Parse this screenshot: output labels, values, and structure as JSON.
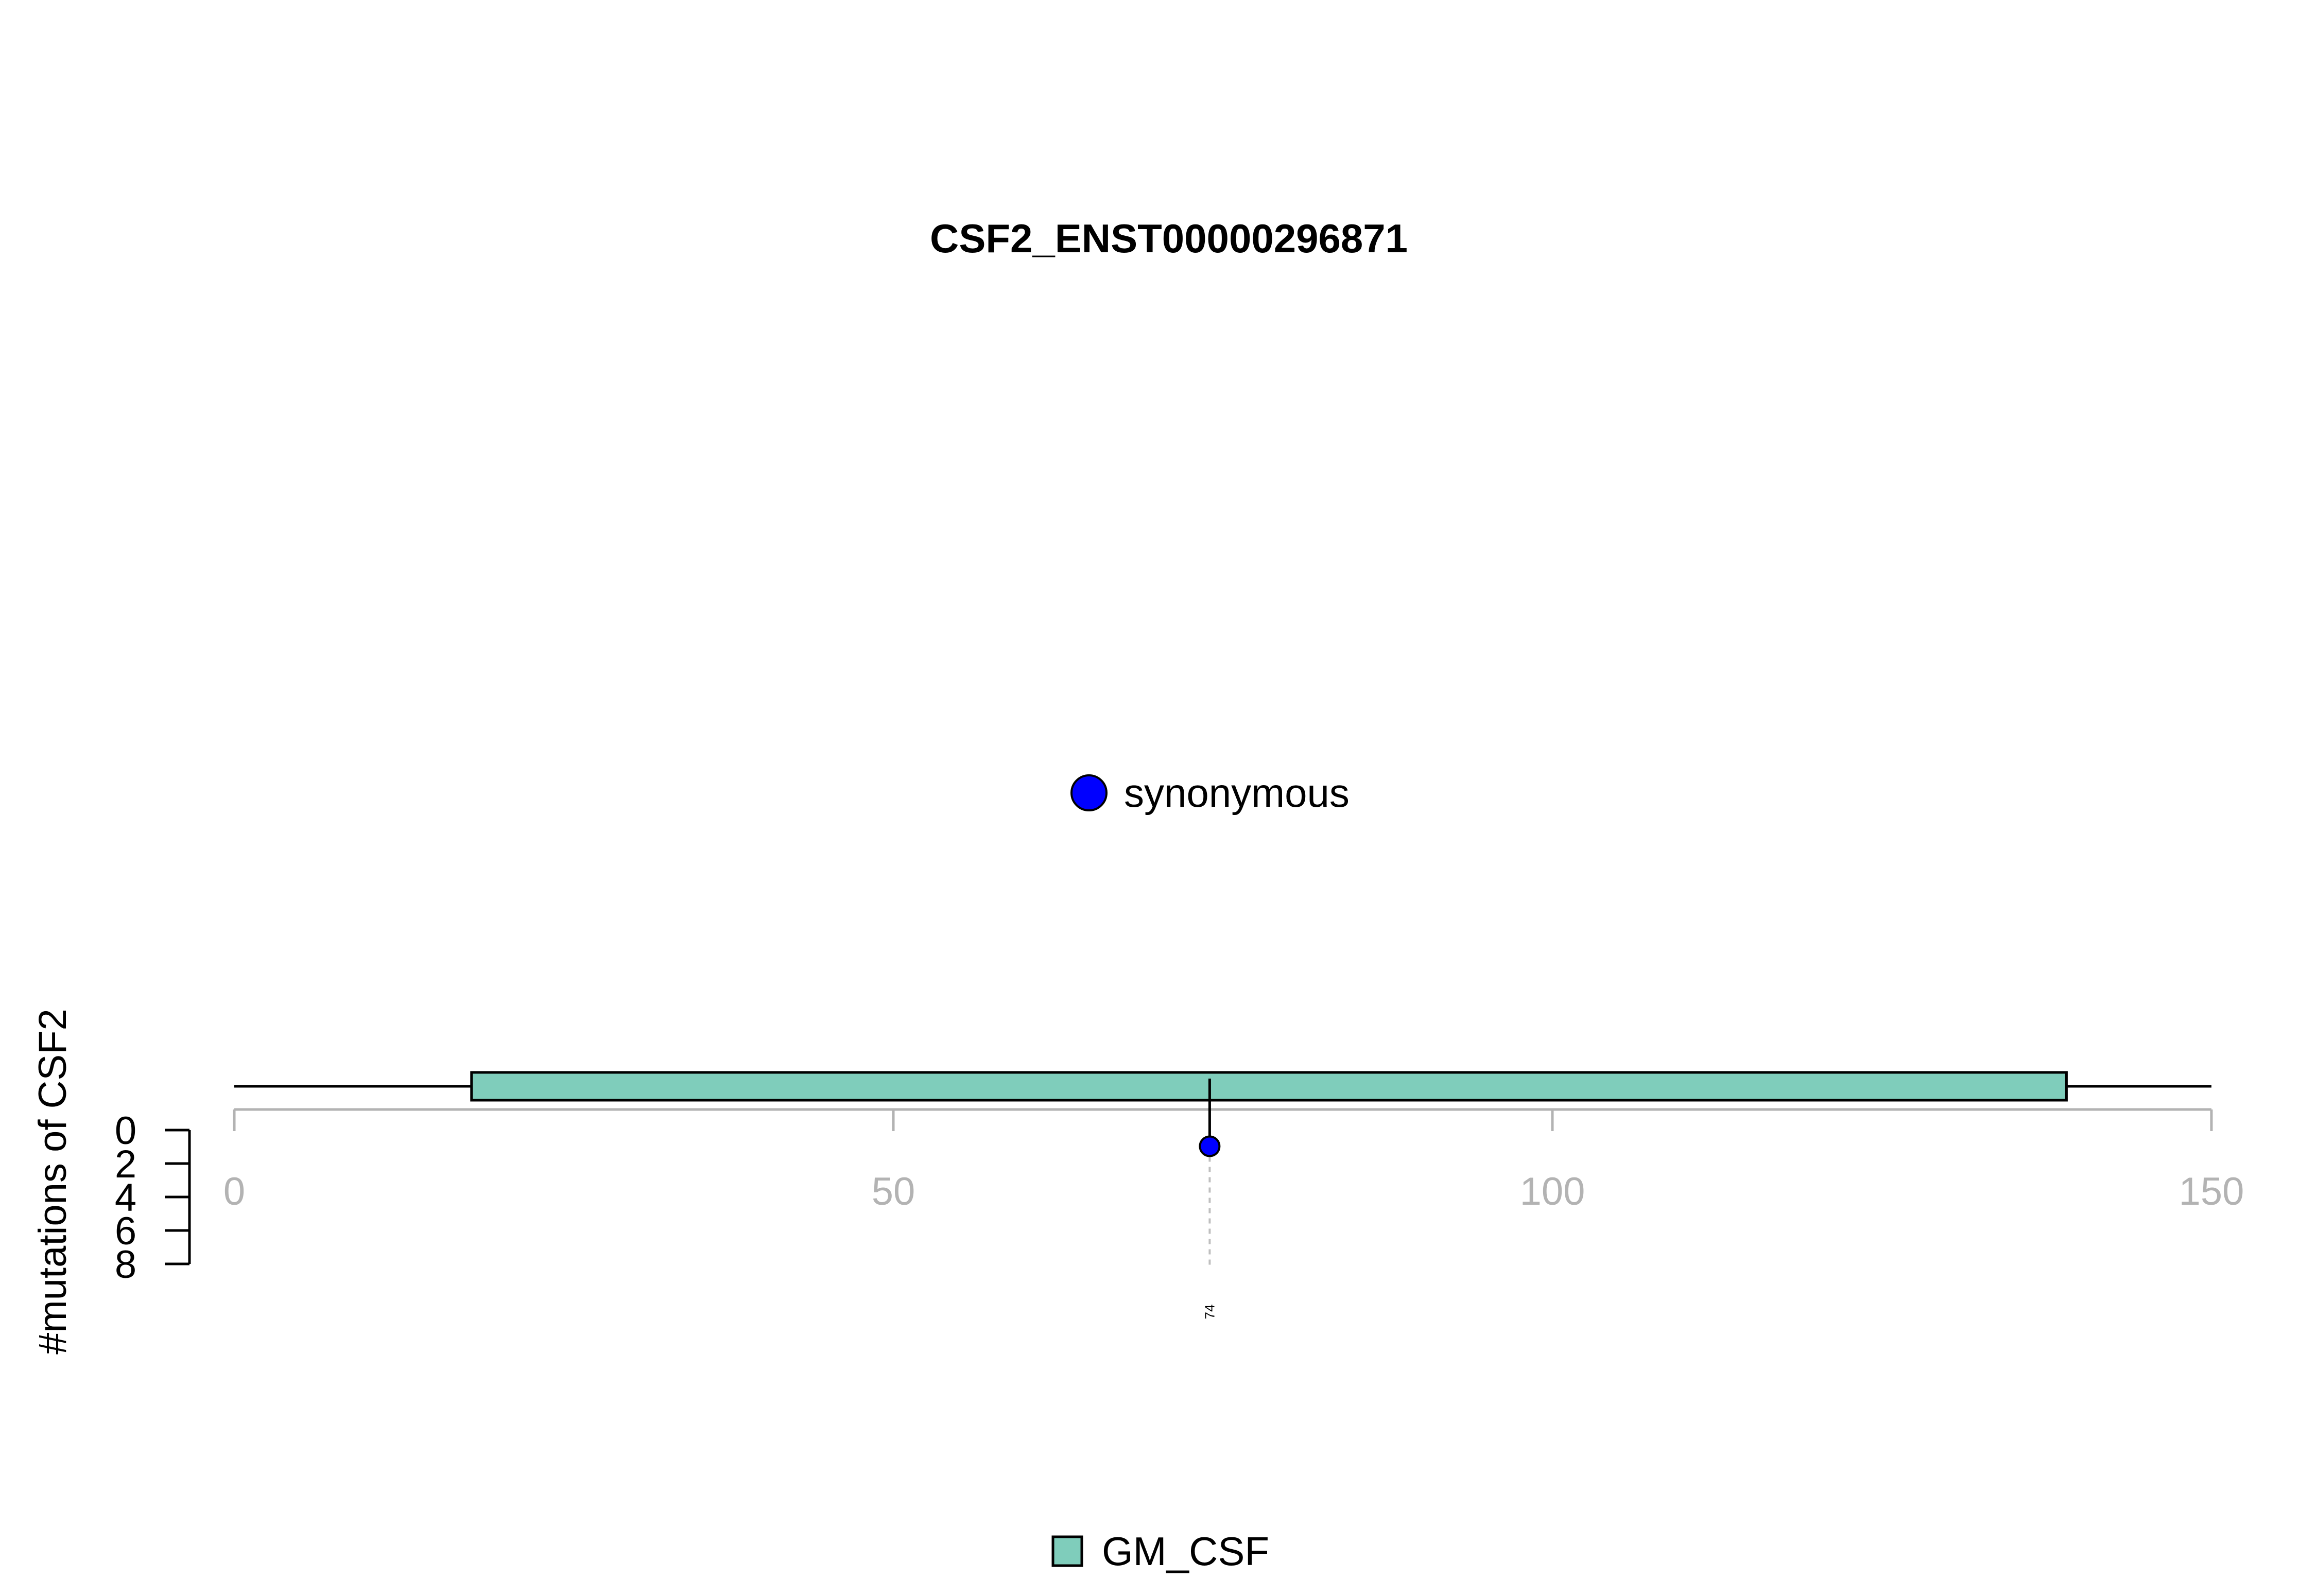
{
  "chart_data": {
    "type": "lollipop",
    "title": "CSF2_ENST00000296871",
    "xlabel": "",
    "ylabel": "#mutations of CSF2",
    "xlim": [
      0,
      150
    ],
    "x_ticks": [
      0,
      50,
      100,
      150
    ],
    "y_ticks": [
      0,
      2,
      4,
      6,
      8
    ],
    "protein_length": 150,
    "domains": [
      {
        "name": "GM_CSF",
        "start": 18,
        "end": 139,
        "color": "#7fcdbb"
      }
    ],
    "mutations": [
      {
        "position": 74,
        "count": 1,
        "label": "74",
        "type": "synonymous",
        "color": "#0000ff"
      }
    ],
    "mutation_legend": [
      {
        "label": "synonymous",
        "color": "#0000ff"
      }
    ],
    "domain_legend": [
      {
        "label": "GM_CSF",
        "color": "#7fcdbb"
      }
    ],
    "colors": {
      "axis": "#b3b3b3",
      "line": "#000000",
      "guide": "#bfbfbf"
    }
  }
}
